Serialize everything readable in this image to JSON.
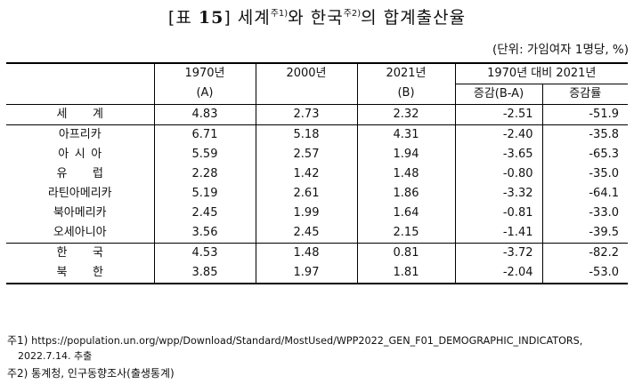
{
  "title": {
    "prefix": "[표 ",
    "number": "15",
    "main_a": "] 세계",
    "note1": "주1)",
    "main_b": "와 한국",
    "note2": "주2)",
    "main_c": "의 합계출산율"
  },
  "unit": "(단위: 가임여자 1명당, %)",
  "table": {
    "header": {
      "col_1970": "1970년",
      "col_1970_sub": "(A)",
      "col_2000": "2000년",
      "col_2021": "2021년",
      "col_2021_sub": "(B)",
      "compare_group": "1970년 대비 2021년",
      "change": "증감(B-A)",
      "change_rate": "증감률"
    },
    "rows": [
      {
        "label": "세계",
        "v1970": "4.83",
        "v2000": "2.73",
        "v2021": "2.32",
        "diff": "-2.51",
        "rate": "-51.9"
      },
      {
        "label": "아프리카",
        "v1970": "6.71",
        "v2000": "5.18",
        "v2021": "4.31",
        "diff": "-2.40",
        "rate": "-35.8"
      },
      {
        "label": "아시아",
        "v1970": "5.59",
        "v2000": "2.57",
        "v2021": "1.94",
        "diff": "-3.65",
        "rate": "-65.3"
      },
      {
        "label": "유럽",
        "v1970": "2.28",
        "v2000": "1.42",
        "v2021": "1.48",
        "diff": "-0.80",
        "rate": "-35.0"
      },
      {
        "label": "라틴아메리카",
        "v1970": "5.19",
        "v2000": "2.61",
        "v2021": "1.86",
        "diff": "-3.32",
        "rate": "-64.1"
      },
      {
        "label": "북아메리카",
        "v1970": "2.45",
        "v2000": "1.99",
        "v2021": "1.64",
        "diff": "-0.81",
        "rate": "-33.0"
      },
      {
        "label": "오세아니아",
        "v1970": "3.56",
        "v2000": "2.45",
        "v2021": "2.15",
        "diff": "-1.41",
        "rate": "-39.5"
      },
      {
        "label": "한국",
        "v1970": "4.53",
        "v2000": "1.48",
        "v2021": "0.81",
        "diff": "-3.72",
        "rate": "-82.2"
      },
      {
        "label": "북한",
        "v1970": "3.85",
        "v2000": "1.97",
        "v2021": "1.81",
        "diff": "-2.04",
        "rate": "-53.0"
      }
    ]
  },
  "notes": {
    "note1_prefix": "주1) ",
    "note1_url": "https://population.un.org/wpp/Download/Standard/MostUsed/WPP2022_GEN_F01_DEMOGRAPHIC_INDICATORS,",
    "note1_date": "2022.7.14. 추출",
    "note2": "주2) 통계청, 인구동향조사(출생통계)"
  }
}
